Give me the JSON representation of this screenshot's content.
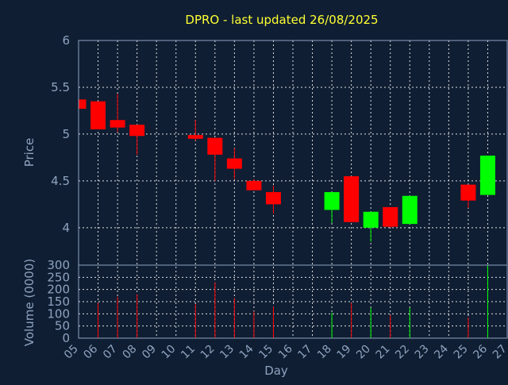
{
  "chart_data": {
    "type": "candlestick",
    "title": "DPRO - last updated 26/08/2025",
    "xlabel": "Day",
    "ylabel": "Price",
    "volume_label": "Volume (0000)",
    "x_ticks": [
      "05",
      "06",
      "07",
      "08",
      "09",
      "10",
      "11",
      "12",
      "13",
      "14",
      "15",
      "16",
      "17",
      "18",
      "19",
      "20",
      "21",
      "22",
      "23",
      "24",
      "25",
      "26",
      "27"
    ],
    "price_ticks": [
      "4",
      "4.5",
      "5",
      "5.5",
      "6"
    ],
    "volume_ticks": [
      "0",
      "50",
      "100",
      "150",
      "200",
      "250",
      "300"
    ],
    "price_range": [
      3.6,
      6.0
    ],
    "volume_range": [
      0,
      300
    ],
    "grid": true,
    "colors": {
      "up": "#00ff00",
      "down": "#ff0000",
      "title": "#ffff33",
      "axis": "#8fa3bf",
      "background": "#0f1e33"
    },
    "candles": [
      {
        "day": "05",
        "open": 5.37,
        "high": 5.37,
        "low": 5.27,
        "close": 5.27,
        "volume": 0
      },
      {
        "day": "06",
        "open": 5.35,
        "high": 5.35,
        "low": 5.05,
        "close": 5.05,
        "volume": 145
      },
      {
        "day": "07",
        "open": 5.15,
        "high": 5.43,
        "low": 5.02,
        "close": 5.07,
        "volume": 170
      },
      {
        "day": "08",
        "open": 5.1,
        "high": 5.1,
        "low": 4.78,
        "close": 4.98,
        "volume": 180
      },
      {
        "day": "11",
        "open": 4.99,
        "high": 5.15,
        "low": 4.93,
        "close": 4.95,
        "volume": 140
      },
      {
        "day": "12",
        "open": 4.96,
        "high": 4.96,
        "low": 4.5,
        "close": 4.78,
        "volume": 230
      },
      {
        "day": "13",
        "open": 4.74,
        "high": 4.85,
        "low": 4.52,
        "close": 4.63,
        "volume": 165
      },
      {
        "day": "14",
        "open": 4.5,
        "high": 4.52,
        "low": 4.4,
        "close": 4.4,
        "volume": 110
      },
      {
        "day": "15",
        "open": 4.38,
        "high": 4.45,
        "low": 4.15,
        "close": 4.25,
        "volume": 130
      },
      {
        "day": "18",
        "open": 4.19,
        "high": 4.38,
        "low": 4.05,
        "close": 4.38,
        "volume": 105
      },
      {
        "day": "19",
        "open": 4.55,
        "high": 4.55,
        "low": 4.06,
        "close": 4.06,
        "volume": 145
      },
      {
        "day": "20",
        "open": 4.0,
        "high": 4.17,
        "low": 3.85,
        "close": 4.17,
        "volume": 125
      },
      {
        "day": "21",
        "open": 4.22,
        "high": 4.22,
        "low": 4.0,
        "close": 4.01,
        "volume": 95
      },
      {
        "day": "22",
        "open": 4.04,
        "high": 4.34,
        "low": 4.04,
        "close": 4.34,
        "volume": 125
      },
      {
        "day": "25",
        "open": 4.46,
        "high": 4.46,
        "low": 4.21,
        "close": 4.29,
        "volume": 85
      },
      {
        "day": "26",
        "open": 4.35,
        "high": 4.77,
        "low": 4.35,
        "close": 4.77,
        "volume": 300
      }
    ]
  }
}
